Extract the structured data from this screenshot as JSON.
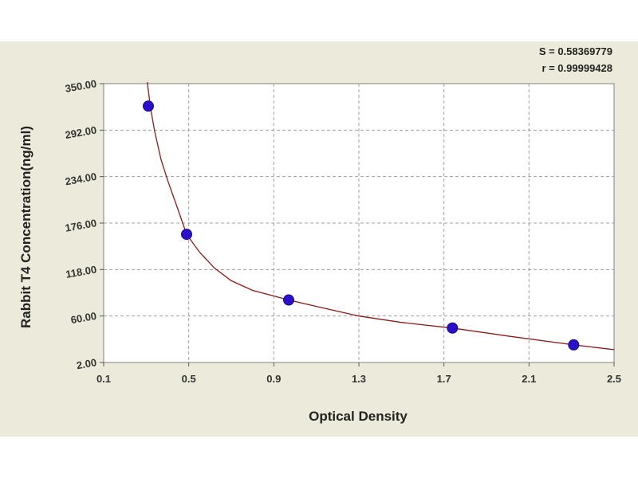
{
  "chart_data": {
    "type": "scatter",
    "title": "",
    "xlabel": "Optical Density",
    "ylabel": "Rabbit T4 Concentration(ng/ml)",
    "xlim": [
      0.1,
      2.5
    ],
    "ylim": [
      2.0,
      350.0
    ],
    "x_ticks": [
      "0.1",
      "0.5",
      "0.9",
      "1.3",
      "1.7",
      "2.1",
      "2.5"
    ],
    "y_ticks": [
      "350.00",
      "292.00",
      "234.00",
      "176.00",
      "118.00",
      "60.00",
      "2.00"
    ],
    "grid": true,
    "stats": [
      "S = 0.58369779",
      "r = 0.99999428"
    ],
    "colors": {
      "background": "#ecebdb",
      "plot": "#ffffff",
      "point": "#2a10c8",
      "curve": "#8b1a1a",
      "grid": "#a0a0a0"
    },
    "series": [
      {
        "type": "points",
        "x": [
          0.31,
          0.49,
          0.97,
          1.74,
          2.31
        ],
        "y": [
          322,
          162,
          80,
          45,
          24
        ]
      },
      {
        "type": "fit-curve",
        "x": [
          0.305,
          0.32,
          0.34,
          0.37,
          0.4,
          0.44,
          0.49,
          0.55,
          0.62,
          0.7,
          0.8,
          0.9,
          0.97,
          1.1,
          1.3,
          1.5,
          1.74,
          2.0,
          2.31,
          2.5
        ],
        "y": [
          352,
          320,
          290,
          255,
          230,
          200,
          162,
          140,
          120,
          104,
          92,
          85,
          80,
          72,
          60,
          52,
          45,
          35,
          24,
          18
        ]
      }
    ]
  }
}
